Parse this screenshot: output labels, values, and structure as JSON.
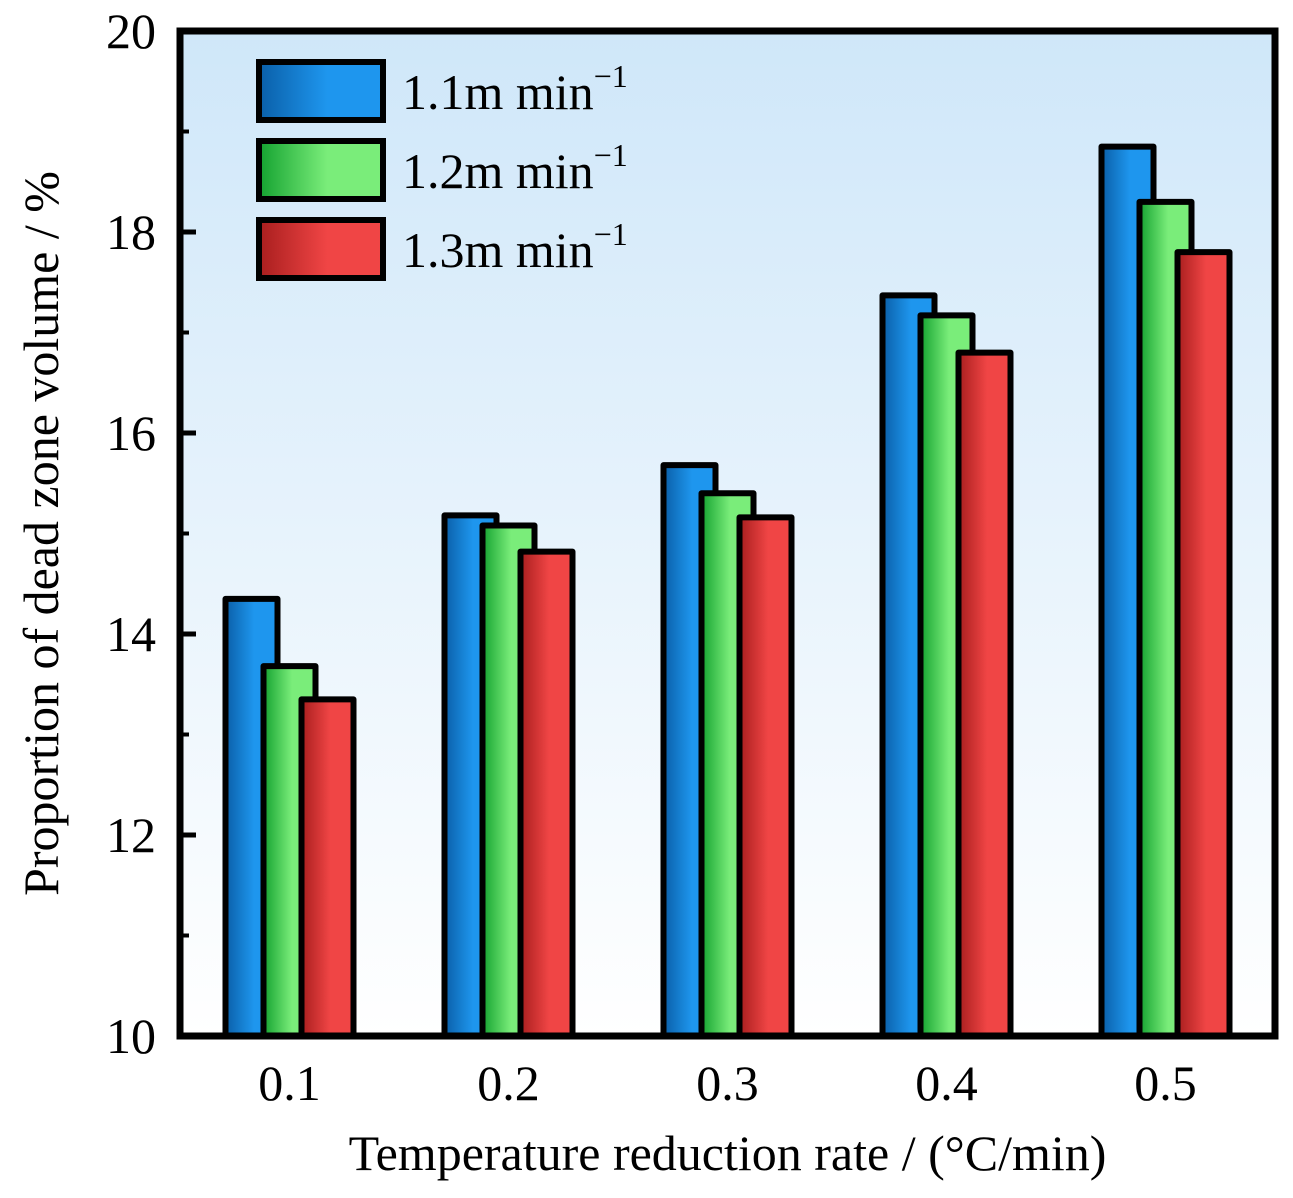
{
  "chart_data": {
    "type": "bar",
    "title": "",
    "xlabel": "Temperature reduction rate / (°C/min)",
    "ylabel": "Proportion of dead zone volume / %",
    "categories": [
      "0.1",
      "0.2",
      "0.3",
      "0.4",
      "0.5"
    ],
    "ylim": [
      10,
      20
    ],
    "yticks": [
      "10",
      "12",
      "14",
      "16",
      "18",
      "20"
    ],
    "minor_ticks": [
      11,
      13,
      15,
      17,
      19
    ],
    "grid": false,
    "legend_position": "top-left",
    "series": [
      {
        "name": "1.1m min",
        "superscript": "−1",
        "values": [
          14.35,
          15.18,
          15.68,
          17.37,
          18.85
        ],
        "colors": [
          "#0a5fa8",
          "#1e96ee"
        ]
      },
      {
        "name": "1.2m min",
        "superscript": "−1",
        "values": [
          13.68,
          15.08,
          15.4,
          17.17,
          18.3
        ],
        "colors": [
          "#14a230",
          "#7aed7a"
        ]
      },
      {
        "name": "1.3m min",
        "superscript": "−1",
        "values": [
          13.35,
          14.82,
          15.16,
          16.8,
          17.8
        ],
        "colors": [
          "#a81e1e",
          "#f04545"
        ]
      }
    ],
    "background_gradient": [
      "#cfe7f9",
      "#ffffff"
    ]
  }
}
